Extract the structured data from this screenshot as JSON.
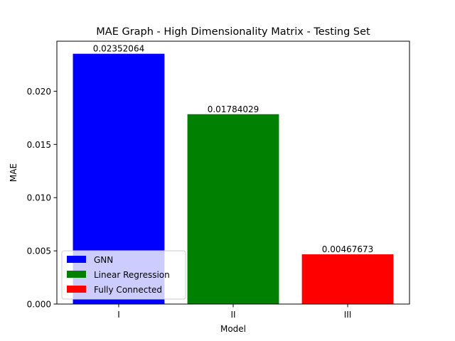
{
  "chart_data": {
    "type": "bar",
    "title": "MAE Graph - High Dimensionality Matrix - Testing Set",
    "xlabel": "Model",
    "ylabel": "MAE",
    "categories": [
      "I",
      "II",
      "III"
    ],
    "values": [
      0.02352064,
      0.01784029,
      0.00467673
    ],
    "value_labels": [
      "0.02352064",
      "0.01784029",
      "0.00467673"
    ],
    "colors": [
      "#0000ff",
      "#008000",
      "#ff0000"
    ],
    "ylim": [
      0,
      0.0247
    ],
    "yticks": [
      0,
      0.005,
      0.01,
      0.015,
      0.02
    ],
    "ytick_labels": [
      "0.000",
      "0.005",
      "0.010",
      "0.015",
      "0.020"
    ],
    "legend": {
      "placement": "lower-left",
      "entries": [
        {
          "label": "GNN",
          "color": "#0000ff"
        },
        {
          "label": "Linear Regression",
          "color": "#008000"
        },
        {
          "label": "Fully Connected",
          "color": "#ff0000"
        }
      ]
    },
    "grid": false
  }
}
